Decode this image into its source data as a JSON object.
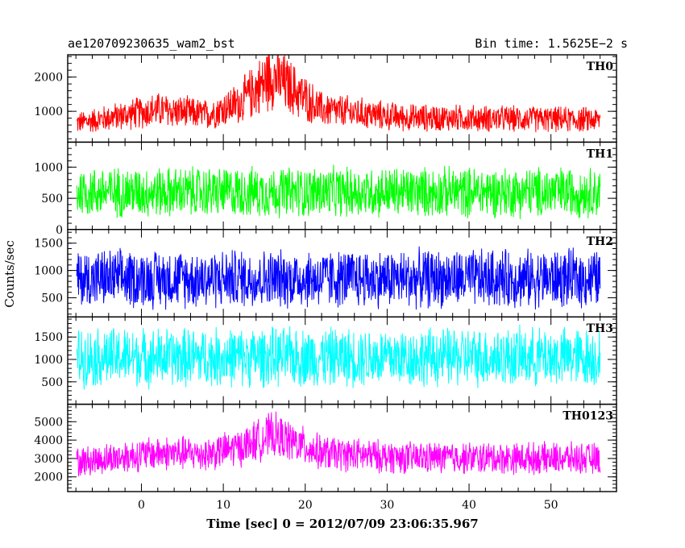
{
  "header": {
    "obs_id": "ae120709230635_wam2_bst",
    "bin_time": "Bin time: 1.5625E−2 s"
  },
  "chart_data": {
    "type": "line",
    "ylabel": "Counts/sec",
    "xlabel": "Time [sec] 0 = 2012/07/09 23:06:35.967",
    "xlim": [
      -9,
      58
    ],
    "x_ticks": [
      0,
      10,
      20,
      30,
      40,
      50
    ],
    "x_tick_labels": [
      "0",
      "10",
      "20",
      "30",
      "40",
      "50"
    ],
    "panels": [
      {
        "name": "TH0",
        "color": "#ff0000",
        "ylim": [
          100,
          2650
        ],
        "y_ticks": [
          1000,
          2000
        ],
        "y_tick_labels": [
          "1000",
          "2000"
        ],
        "profile": [
          [
            -8,
            650
          ],
          [
            2,
            1050
          ],
          [
            8,
            900
          ],
          [
            12,
            1250
          ],
          [
            16,
            2050
          ],
          [
            22,
            1050
          ],
          [
            32,
            820
          ],
          [
            56,
            750
          ]
        ],
        "noise": 0.55
      },
      {
        "name": "TH1",
        "color": "#00ff00",
        "ylim": [
          0,
          1400
        ],
        "y_ticks": [
          0,
          500,
          1000
        ],
        "y_tick_labels": [
          "0",
          "500",
          "1000"
        ],
        "profile": [
          [
            -8,
            600
          ],
          [
            56,
            600
          ]
        ],
        "noise": 0.75
      },
      {
        "name": "TH2",
        "color": "#0000ff",
        "ylim": [
          150,
          1750
        ],
        "y_ticks": [
          500,
          1000,
          1500
        ],
        "y_tick_labels": [
          "500",
          "1000",
          "1500"
        ],
        "profile": [
          [
            -8,
            850
          ],
          [
            56,
            850
          ]
        ],
        "noise": 0.7
      },
      {
        "name": "TH3",
        "color": "#00ffff",
        "ylim": [
          0,
          1950
        ],
        "y_ticks": [
          500,
          1000,
          1500
        ],
        "y_tick_labels": [
          "500",
          "1000",
          "1500"
        ],
        "profile": [
          [
            -8,
            1050
          ],
          [
            56,
            1050
          ]
        ],
        "noise": 0.7
      },
      {
        "name": "TH0123",
        "color": "#ff00ff",
        "ylim": [
          1200,
          5950
        ],
        "y_ticks": [
          2000,
          3000,
          4000,
          5000
        ],
        "y_tick_labels": [
          "2000",
          "3000",
          "4000",
          "5000"
        ],
        "profile": [
          [
            -8,
            2800
          ],
          [
            2,
            3300
          ],
          [
            8,
            3250
          ],
          [
            12,
            3600
          ],
          [
            16,
            4300
          ],
          [
            22,
            3300
          ],
          [
            32,
            3050
          ],
          [
            56,
            3000
          ]
        ],
        "noise": 0.32
      }
    ]
  }
}
